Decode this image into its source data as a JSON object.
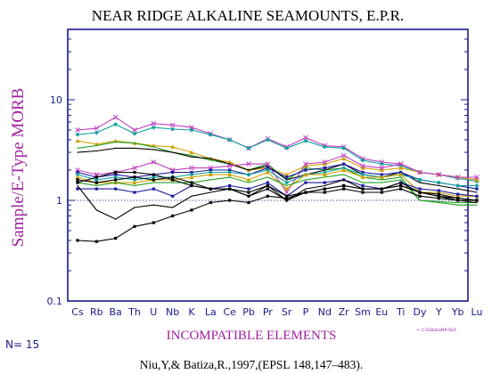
{
  "chart_data": {
    "type": "line",
    "title": "NEAR RIDGE ALKALINE SEAMOUNTS, E.P.R.",
    "ylabel": "Sample/E-Type MORB",
    "xlabel": "INCOMPATIBLE ELEMENTS",
    "yscale": "log",
    "ylim": [
      0.1,
      50
    ],
    "yticks": [
      "10",
      "1",
      "0.1"
    ],
    "reference_line": 1,
    "categories": [
      "Cs",
      "Rb",
      "Ba",
      "Th",
      "U",
      "Nb",
      "K",
      "La",
      "Ce",
      "Pb",
      "Pr",
      "Sr",
      "P",
      "Nd",
      "Zr",
      "Sm",
      "Eu",
      "Ti",
      "Dy",
      "Y",
      "Yb",
      "Lu"
    ],
    "sample_count_label": "N= 15",
    "file_note": "← C:\\GData\\NR-SEA",
    "citation": "Niu,Y,& Batiza,R.,1997,(EPSL 148,147–483).",
    "series": [
      {
        "color": "#c040c0",
        "marker": "cross",
        "values": [
          5.0,
          5.2,
          6.7,
          5.0,
          5.8,
          5.6,
          5.3,
          4.6,
          4.0,
          3.3,
          4.1,
          3.4,
          4.2,
          3.5,
          3.4,
          2.6,
          2.4,
          2.3,
          1.9,
          1.8,
          1.7,
          1.6
        ]
      },
      {
        "color": "#10a0a0",
        "marker": "diamond",
        "values": [
          4.5,
          4.7,
          5.7,
          4.6,
          5.3,
          5.1,
          5.0,
          4.5,
          4.0,
          3.3,
          4.0,
          3.3,
          3.9,
          3.4,
          3.3,
          2.5,
          2.3,
          2.2,
          1.9,
          1.8,
          1.65,
          1.55
        ]
      },
      {
        "color": "#d0a000",
        "marker": "triangle",
        "values": [
          3.9,
          3.6,
          3.9,
          3.7,
          3.5,
          3.4,
          3.0,
          2.6,
          2.4,
          2.0,
          2.1,
          1.8,
          2.2,
          2.3,
          2.6,
          2.1,
          2.0,
          2.1,
          1.9,
          1.8,
          1.7,
          1.6
        ]
      },
      {
        "color": "#20a020",
        "marker": "none",
        "values": [
          3.3,
          3.5,
          3.8,
          3.7,
          3.4,
          3.0,
          2.8,
          2.5,
          2.3,
          2.0,
          2.3,
          1.6,
          2.1,
          2.0,
          2.1,
          1.7,
          1.6,
          1.7,
          1.0,
          0.95,
          0.9,
          0.9
        ]
      },
      {
        "color": "#000000",
        "marker": "none",
        "values": [
          3.0,
          3.1,
          3.3,
          3.3,
          3.2,
          3.0,
          2.7,
          2.6,
          2.3,
          2.0,
          2.2,
          1.6,
          1.8,
          2.0,
          2.3,
          1.8,
          1.7,
          1.9,
          1.5,
          1.4,
          1.3,
          1.2
        ]
      },
      {
        "color": "#c040c0",
        "marker": "cross",
        "values": [
          2.0,
          1.8,
          1.9,
          2.1,
          2.4,
          2.0,
          2.1,
          2.1,
          2.2,
          2.3,
          2.3,
          1.2,
          2.3,
          2.4,
          2.8,
          2.2,
          2.1,
          2.3,
          1.9,
          1.8,
          1.7,
          1.7
        ]
      },
      {
        "color": "#1a1aa0",
        "marker": "square",
        "values": [
          1.9,
          1.7,
          1.8,
          1.7,
          1.8,
          1.9,
          1.9,
          2.0,
          2.0,
          1.8,
          2.1,
          1.7,
          2.0,
          2.1,
          2.3,
          1.9,
          1.8,
          1.9,
          1.6,
          1.5,
          1.4,
          1.3
        ]
      },
      {
        "color": "#10a0a0",
        "marker": "diamond",
        "values": [
          1.8,
          1.6,
          1.7,
          1.6,
          1.7,
          1.7,
          1.8,
          1.9,
          1.9,
          1.8,
          2.0,
          1.5,
          1.8,
          1.9,
          2.1,
          1.8,
          1.7,
          1.8,
          1.6,
          1.5,
          1.4,
          1.4
        ]
      },
      {
        "color": "#d0a000",
        "marker": "triangle",
        "values": [
          1.7,
          1.5,
          1.5,
          1.5,
          1.6,
          1.6,
          1.7,
          1.8,
          1.8,
          1.6,
          1.9,
          1.3,
          1.8,
          1.8,
          2.0,
          1.7,
          1.7,
          1.8,
          1.2,
          1.2,
          1.1,
          1.1
        ]
      },
      {
        "color": "#20a020",
        "marker": "none",
        "values": [
          1.5,
          1.4,
          1.5,
          1.4,
          1.5,
          1.5,
          1.5,
          1.6,
          1.7,
          1.5,
          1.7,
          1.4,
          1.6,
          1.7,
          1.8,
          1.5,
          1.5,
          1.6,
          1.0,
          0.97,
          0.95,
          0.95
        ]
      },
      {
        "color": "#1a1aa0",
        "marker": "square",
        "values": [
          1.3,
          1.3,
          1.3,
          1.2,
          1.3,
          1.1,
          1.4,
          1.3,
          1.4,
          1.3,
          1.5,
          1.1,
          1.5,
          1.5,
          1.6,
          1.4,
          1.3,
          1.5,
          1.3,
          1.25,
          1.15,
          1.1
        ]
      },
      {
        "color": "#000000",
        "marker": "square",
        "values": [
          1.5,
          1.7,
          1.9,
          1.9,
          1.8,
          1.6,
          1.4,
          1.3,
          1.3,
          1.2,
          1.4,
          1.1,
          1.2,
          1.3,
          1.4,
          1.3,
          1.3,
          1.4,
          1.2,
          1.1,
          1.05,
          1.0
        ]
      },
      {
        "color": "#000000",
        "marker": "none",
        "values": [
          1.4,
          0.8,
          0.65,
          0.85,
          0.9,
          0.85,
          1.1,
          1.2,
          1.3,
          1.1,
          1.4,
          1.0,
          1.3,
          1.4,
          1.6,
          1.3,
          1.3,
          1.5,
          1.2,
          1.1,
          1.0,
          0.95
        ]
      },
      {
        "color": "#000000",
        "marker": "square",
        "values": [
          1.6,
          1.5,
          1.6,
          1.7,
          1.6,
          1.7,
          1.5,
          1.3,
          1.3,
          1.1,
          1.3,
          1.0,
          1.2,
          1.2,
          1.3,
          1.2,
          1.2,
          1.3,
          1.1,
          1.05,
          1.0,
          1.0
        ]
      },
      {
        "color": "#000000",
        "marker": "square",
        "values": [
          0.4,
          0.39,
          0.42,
          0.55,
          0.6,
          0.7,
          0.8,
          0.95,
          1.0,
          0.95,
          1.1,
          1.05,
          1.2,
          1.3,
          1.4,
          1.3,
          1.3,
          1.4,
          1.2,
          1.15,
          1.05,
          1.0
        ]
      }
    ]
  }
}
